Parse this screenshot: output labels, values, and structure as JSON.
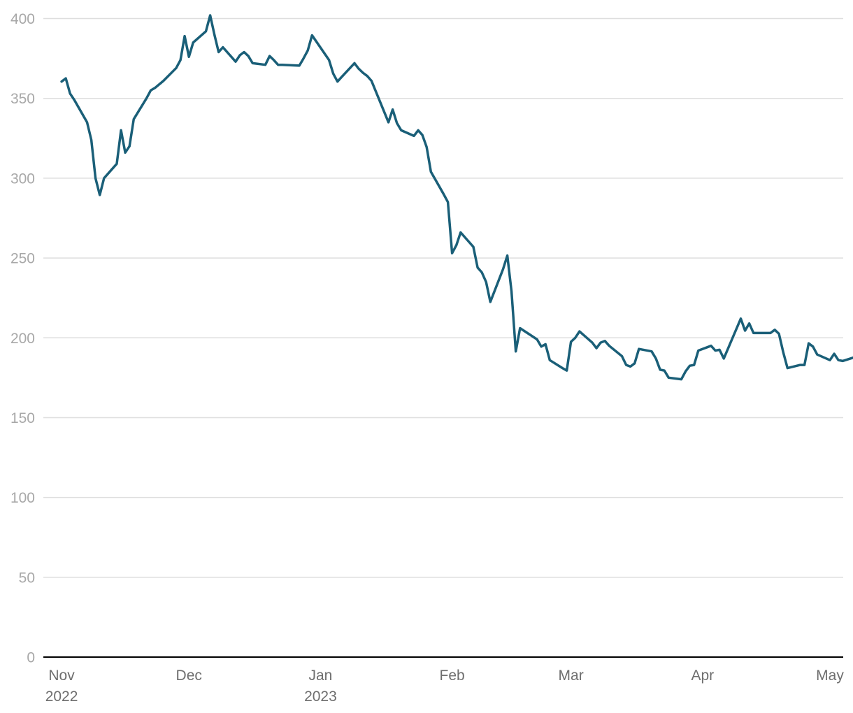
{
  "chart_data": {
    "type": "line",
    "title": "",
    "xlabel": "",
    "ylabel": "",
    "ylim": [
      0,
      400
    ],
    "xlim": [
      "2022-10-31",
      "2023-05-01"
    ],
    "grid": true,
    "legend": "none",
    "line_color": "#1a5f78",
    "yticks": [
      "0",
      "50",
      "100",
      "150",
      "200",
      "250",
      "300",
      "350",
      "400"
    ],
    "xticks": [
      {
        "date": "2022-11-01",
        "label": "Nov",
        "sublabel": "2022"
      },
      {
        "date": "2022-12-01",
        "label": "Dec",
        "sublabel": ""
      },
      {
        "date": "2023-01-01",
        "label": "Jan",
        "sublabel": "2023"
      },
      {
        "date": "2023-02-01",
        "label": "Feb",
        "sublabel": ""
      },
      {
        "date": "2023-03-01",
        "label": "Mar",
        "sublabel": ""
      },
      {
        "date": "2023-04-01",
        "label": "Apr",
        "sublabel": ""
      },
      {
        "date": "2023-05-01",
        "label": "May",
        "sublabel": ""
      }
    ],
    "series": [
      {
        "points": [
          [
            "2022-11-01",
            360.5
          ],
          [
            "2022-11-02",
            362.5
          ],
          [
            "2022-11-03",
            353
          ],
          [
            "2022-11-04",
            349
          ],
          [
            "2022-11-07",
            335
          ],
          [
            "2022-11-08",
            324
          ],
          [
            "2022-11-09",
            300
          ],
          [
            "2022-11-10",
            289.5
          ],
          [
            "2022-11-11",
            300
          ],
          [
            "2022-11-14",
            309
          ],
          [
            "2022-11-15",
            330
          ],
          [
            "2022-11-16",
            316
          ],
          [
            "2022-11-17",
            320
          ],
          [
            "2022-11-18",
            337
          ],
          [
            "2022-11-21",
            350
          ],
          [
            "2022-11-22",
            355
          ],
          [
            "2022-11-23",
            356.5
          ],
          [
            "2022-11-25",
            361
          ],
          [
            "2022-11-28",
            369
          ],
          [
            "2022-11-29",
            374
          ],
          [
            "2022-11-30",
            389
          ],
          [
            "2022-12-01",
            376
          ],
          [
            "2022-12-02",
            385
          ],
          [
            "2022-12-05",
            392
          ],
          [
            "2022-12-06",
            402
          ],
          [
            "2022-12-07",
            390
          ],
          [
            "2022-12-08",
            379
          ],
          [
            "2022-12-09",
            382
          ],
          [
            "2022-12-12",
            373
          ],
          [
            "2022-12-13",
            377
          ],
          [
            "2022-12-14",
            379
          ],
          [
            "2022-12-15",
            376.5
          ],
          [
            "2022-12-16",
            372
          ],
          [
            "2022-12-19",
            371
          ],
          [
            "2022-12-20",
            376.5
          ],
          [
            "2022-12-21",
            374
          ],
          [
            "2022-12-22",
            371
          ],
          [
            "2022-12-23",
            371
          ],
          [
            "2022-12-27",
            370.5
          ],
          [
            "2022-12-28",
            375
          ],
          [
            "2022-12-29",
            380
          ],
          [
            "2022-12-30",
            389.5
          ],
          [
            "2023-01-03",
            374
          ],
          [
            "2023-01-04",
            365.5
          ],
          [
            "2023-01-05",
            360.5
          ],
          [
            "2023-01-06",
            363.5
          ],
          [
            "2023-01-09",
            372
          ],
          [
            "2023-01-10",
            368.5
          ],
          [
            "2023-01-11",
            366
          ],
          [
            "2023-01-12",
            364
          ],
          [
            "2023-01-13",
            361
          ],
          [
            "2023-01-17",
            335
          ],
          [
            "2023-01-18",
            343
          ],
          [
            "2023-01-19",
            334.5
          ],
          [
            "2023-01-20",
            330
          ],
          [
            "2023-01-23",
            326.5
          ],
          [
            "2023-01-24",
            330
          ],
          [
            "2023-01-25",
            327
          ],
          [
            "2023-01-26",
            319.5
          ],
          [
            "2023-01-27",
            304
          ],
          [
            "2023-01-30",
            290
          ],
          [
            "2023-01-31",
            285
          ],
          [
            "2023-02-01",
            253
          ],
          [
            "2023-02-02",
            258
          ],
          [
            "2023-02-03",
            266
          ],
          [
            "2023-02-06",
            257
          ],
          [
            "2023-02-07",
            244
          ],
          [
            "2023-02-08",
            241
          ],
          [
            "2023-02-09",
            235
          ],
          [
            "2023-02-10",
            222.5
          ],
          [
            "2023-02-13",
            243
          ],
          [
            "2023-02-14",
            251.5
          ],
          [
            "2023-02-15",
            229
          ],
          [
            "2023-02-16",
            191.5
          ],
          [
            "2023-02-17",
            206
          ],
          [
            "2023-02-21",
            199
          ],
          [
            "2023-02-22",
            194.5
          ],
          [
            "2023-02-23",
            196
          ],
          [
            "2023-02-24",
            186
          ],
          [
            "2023-02-27",
            181
          ],
          [
            "2023-02-28",
            179.5
          ],
          [
            "2023-03-01",
            197.5
          ],
          [
            "2023-03-02",
            200
          ],
          [
            "2023-03-03",
            204
          ],
          [
            "2023-03-06",
            197
          ],
          [
            "2023-03-07",
            193.5
          ],
          [
            "2023-03-08",
            197
          ],
          [
            "2023-03-09",
            198
          ],
          [
            "2023-03-10",
            195
          ],
          [
            "2023-03-13",
            188.5
          ],
          [
            "2023-03-14",
            183
          ],
          [
            "2023-03-15",
            182
          ],
          [
            "2023-03-16",
            184
          ],
          [
            "2023-03-17",
            193
          ],
          [
            "2023-03-20",
            191.5
          ],
          [
            "2023-03-21",
            187
          ],
          [
            "2023-03-22",
            180
          ],
          [
            "2023-03-23",
            179.5
          ],
          [
            "2023-03-24",
            175
          ],
          [
            "2023-03-27",
            174
          ],
          [
            "2023-03-28",
            179
          ],
          [
            "2023-03-29",
            182.5
          ],
          [
            "2023-03-30",
            183
          ],
          [
            "2023-03-31",
            192
          ],
          [
            "2023-04-03",
            195
          ],
          [
            "2023-04-04",
            192
          ],
          [
            "2023-04-05",
            192.5
          ],
          [
            "2023-04-06",
            187
          ],
          [
            "2023-04-10",
            212
          ],
          [
            "2023-04-11",
            204.5
          ],
          [
            "2023-04-12",
            209
          ],
          [
            "2023-04-13",
            203
          ],
          [
            "2023-04-14",
            203
          ],
          [
            "2023-04-17",
            203
          ],
          [
            "2023-04-18",
            205
          ],
          [
            "2023-04-19",
            202.5
          ],
          [
            "2023-04-20",
            191
          ],
          [
            "2023-04-21",
            181
          ],
          [
            "2023-04-24",
            183
          ],
          [
            "2023-04-25",
            183
          ],
          [
            "2023-04-26",
            196.5
          ],
          [
            "2023-04-27",
            194.5
          ],
          [
            "2023-04-28",
            189.5
          ],
          [
            "2023-05-01",
            186
          ],
          [
            "2023-05-02",
            190
          ],
          [
            "2023-05-03",
            186
          ],
          [
            "2023-05-04",
            185.5
          ],
          [
            "2023-05-07",
            188
          ],
          [
            "2023-05-08",
            190
          ],
          [
            "2023-05-09",
            182
          ]
        ]
      }
    ]
  }
}
